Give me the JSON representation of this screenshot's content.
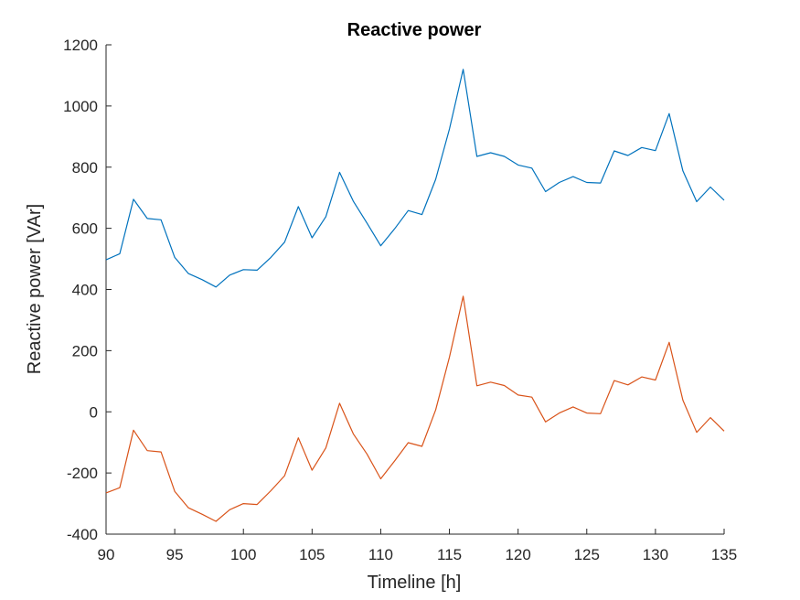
{
  "chart_data": {
    "type": "line",
    "title": "Reactive power",
    "xlabel": "Timeline [h]",
    "ylabel": "Reactive power [VAr]",
    "xlim": [
      90,
      135
    ],
    "ylim": [
      -400,
      1200
    ],
    "xticks": [
      90,
      95,
      100,
      105,
      110,
      115,
      120,
      125,
      130,
      135
    ],
    "yticks": [
      -400,
      -200,
      0,
      200,
      400,
      600,
      800,
      1000,
      1200
    ],
    "grid": false,
    "x": [
      90,
      91,
      92,
      93,
      94,
      95,
      96,
      97,
      98,
      99,
      100,
      101,
      102,
      103,
      104,
      105,
      106,
      107,
      108,
      109,
      110,
      111,
      112,
      113,
      114,
      115,
      116,
      117,
      118,
      119,
      120,
      121,
      122,
      123,
      124,
      125,
      126,
      127,
      128,
      129,
      130,
      131,
      132,
      133,
      134,
      135
    ],
    "series": [
      {
        "color": "#0072BD",
        "values": [
          497,
          517,
          695,
          632,
          628,
          505,
          452,
          432,
          408,
          447,
          465,
          463,
          505,
          555,
          671,
          569,
          638,
          783,
          689,
          617,
          543,
          598,
          658,
          645,
          760,
          925,
          1120,
          835,
          847,
          835,
          807,
          797,
          720,
          750,
          769,
          750,
          748,
          853,
          838,
          864,
          854,
          975,
          788,
          687,
          735,
          692
        ]
      },
      {
        "color": "#D95319",
        "values": [
          -265,
          -248,
          -60,
          -127,
          -131,
          -260,
          -314,
          -335,
          -358,
          -320,
          -300,
          -303,
          -258,
          -209,
          -85,
          -191,
          -118,
          28,
          -72,
          -138,
          -219,
          -161,
          -101,
          -113,
          6,
          179,
          378,
          85,
          97,
          86,
          55,
          48,
          -33,
          -4,
          16,
          -4,
          -6,
          102,
          88,
          114,
          104,
          227,
          38,
          -67,
          -19,
          -63
        ]
      }
    ]
  }
}
